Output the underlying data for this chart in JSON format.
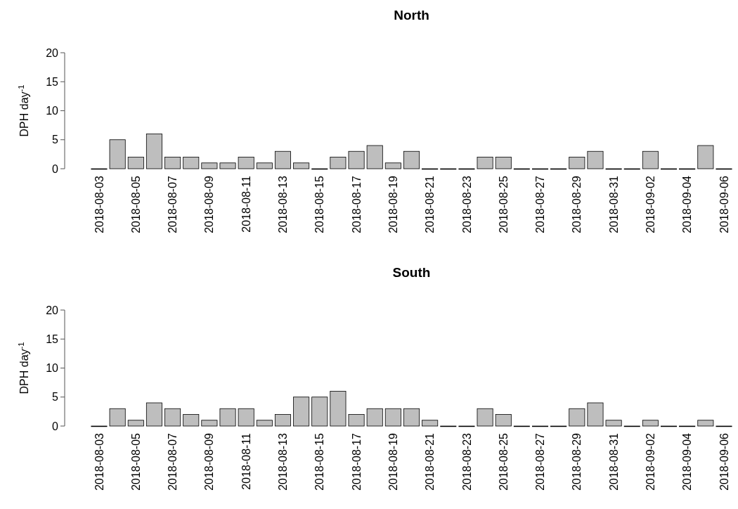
{
  "chart_data": [
    {
      "type": "bar",
      "title": "North",
      "ylabel": "DPH day$^{-1}$",
      "categories": [
        "2018-08-03",
        null,
        "2018-08-05",
        null,
        "2018-08-07",
        null,
        "2018-08-09",
        null,
        "2018-08-11",
        null,
        "2018-08-13",
        null,
        "2018-08-15",
        null,
        "2018-08-17",
        null,
        "2018-08-19",
        null,
        "2018-08-21",
        null,
        "2018-08-23",
        null,
        "2018-08-25",
        null,
        "2018-08-27",
        null,
        "2018-08-29",
        null,
        "2018-08-31",
        null,
        "2018-09-02",
        null,
        "2018-09-04",
        null,
        "2018-09-06"
      ],
      "values": [
        0,
        5,
        2,
        6,
        2,
        2,
        1,
        1,
        2,
        1,
        3,
        1,
        0,
        2,
        3,
        4,
        1,
        3,
        0,
        0,
        0,
        2,
        2,
        0,
        0,
        0,
        2,
        3,
        0,
        0,
        3,
        0,
        0,
        4,
        0
      ],
      "color": "#bebebe",
      "ylim": [
        0,
        20
      ],
      "yticks": [
        0,
        5,
        10,
        15,
        20
      ],
      "grid": false
    },
    {
      "type": "bar",
      "title": "South",
      "ylabel": "DPH day$^{-1}$",
      "categories": [
        "2018-08-03",
        null,
        "2018-08-05",
        null,
        "2018-08-07",
        null,
        "2018-08-09",
        null,
        "2018-08-11",
        null,
        "2018-08-13",
        null,
        "2018-08-15",
        null,
        "2018-08-17",
        null,
        "2018-08-19",
        null,
        "2018-08-21",
        null,
        "2018-08-23",
        null,
        "2018-08-25",
        null,
        "2018-08-27",
        null,
        "2018-08-29",
        null,
        "2018-08-31",
        null,
        "2018-09-02",
        null,
        "2018-09-04",
        null,
        "2018-09-06"
      ],
      "values": [
        0,
        3,
        1,
        4,
        3,
        2,
        1,
        3,
        3,
        1,
        2,
        5,
        5,
        6,
        2,
        3,
        3,
        3,
        1,
        0,
        0,
        3,
        2,
        0,
        0,
        0,
        3,
        4,
        1,
        0,
        1,
        0,
        0,
        1,
        0
      ],
      "color": "#bebebe",
      "ylim": [
        0,
        20
      ],
      "yticks": [
        0,
        5,
        10,
        15,
        20
      ],
      "grid": false
    }
  ]
}
